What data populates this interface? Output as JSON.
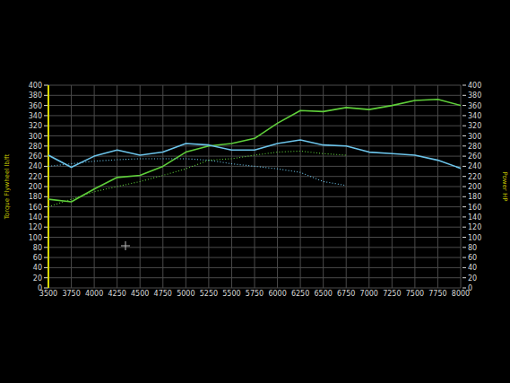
{
  "chart_data": {
    "type": "line",
    "y_label": "Torque Flywheel lb/ft",
    "y2_label": "Power HP",
    "x": [
      3500,
      3750,
      4000,
      4250,
      4500,
      4750,
      5000,
      5250,
      5500,
      5750,
      6000,
      6250,
      6500,
      6750,
      7000,
      7250,
      7500,
      7750,
      8000
    ],
    "series": [
      {
        "color": "#5fcf3a",
        "axis": "y2",
        "line_style": "solid",
        "values": [
          175,
          170,
          195,
          218,
          222,
          240,
          268,
          280,
          285,
          295,
          325,
          350,
          348,
          356,
          352,
          360,
          370,
          372,
          360
        ]
      },
      {
        "color": "#6cc4ea",
        "line_style": "solid",
        "values": [
          262,
          238,
          260,
          272,
          262,
          268,
          285,
          282,
          272,
          272,
          285,
          292,
          282,
          280,
          268,
          265,
          262,
          252,
          236
        ]
      },
      {
        "color": "#5fcf3a",
        "axis": "y2",
        "line_style": "dotted",
        "values": [
          160,
          175,
          190,
          200,
          210,
          222,
          235,
          252,
          255,
          262,
          268,
          270,
          265,
          262,
          null,
          null,
          null,
          null,
          null
        ]
      },
      {
        "color": "#6cc4ea",
        "line_style": "dotted",
        "values": [
          240,
          245,
          250,
          253,
          255,
          255,
          255,
          252,
          245,
          240,
          235,
          228,
          210,
          202,
          null,
          null,
          null,
          null,
          null
        ]
      }
    ],
    "xlim": [
      3500,
      8000
    ],
    "xticks": [
      3500,
      3750,
      4000,
      4250,
      4500,
      4750,
      5000,
      5250,
      5500,
      5750,
      6000,
      6250,
      6500,
      6750,
      7000,
      7250,
      7500,
      7750,
      8000
    ],
    "ylim": [
      0,
      400
    ],
    "yticks": [
      0,
      20,
      40,
      60,
      80,
      100,
      120,
      140,
      160,
      180,
      200,
      220,
      240,
      260,
      280,
      300,
      320,
      340,
      360,
      380,
      400
    ],
    "y2lim": [
      0,
      400
    ],
    "y2ticks": [
      0,
      20,
      40,
      60,
      80,
      100,
      120,
      140,
      160,
      180,
      200,
      220,
      240,
      260,
      280,
      300,
      320,
      340,
      360,
      380,
      400
    ],
    "grid": true
  }
}
